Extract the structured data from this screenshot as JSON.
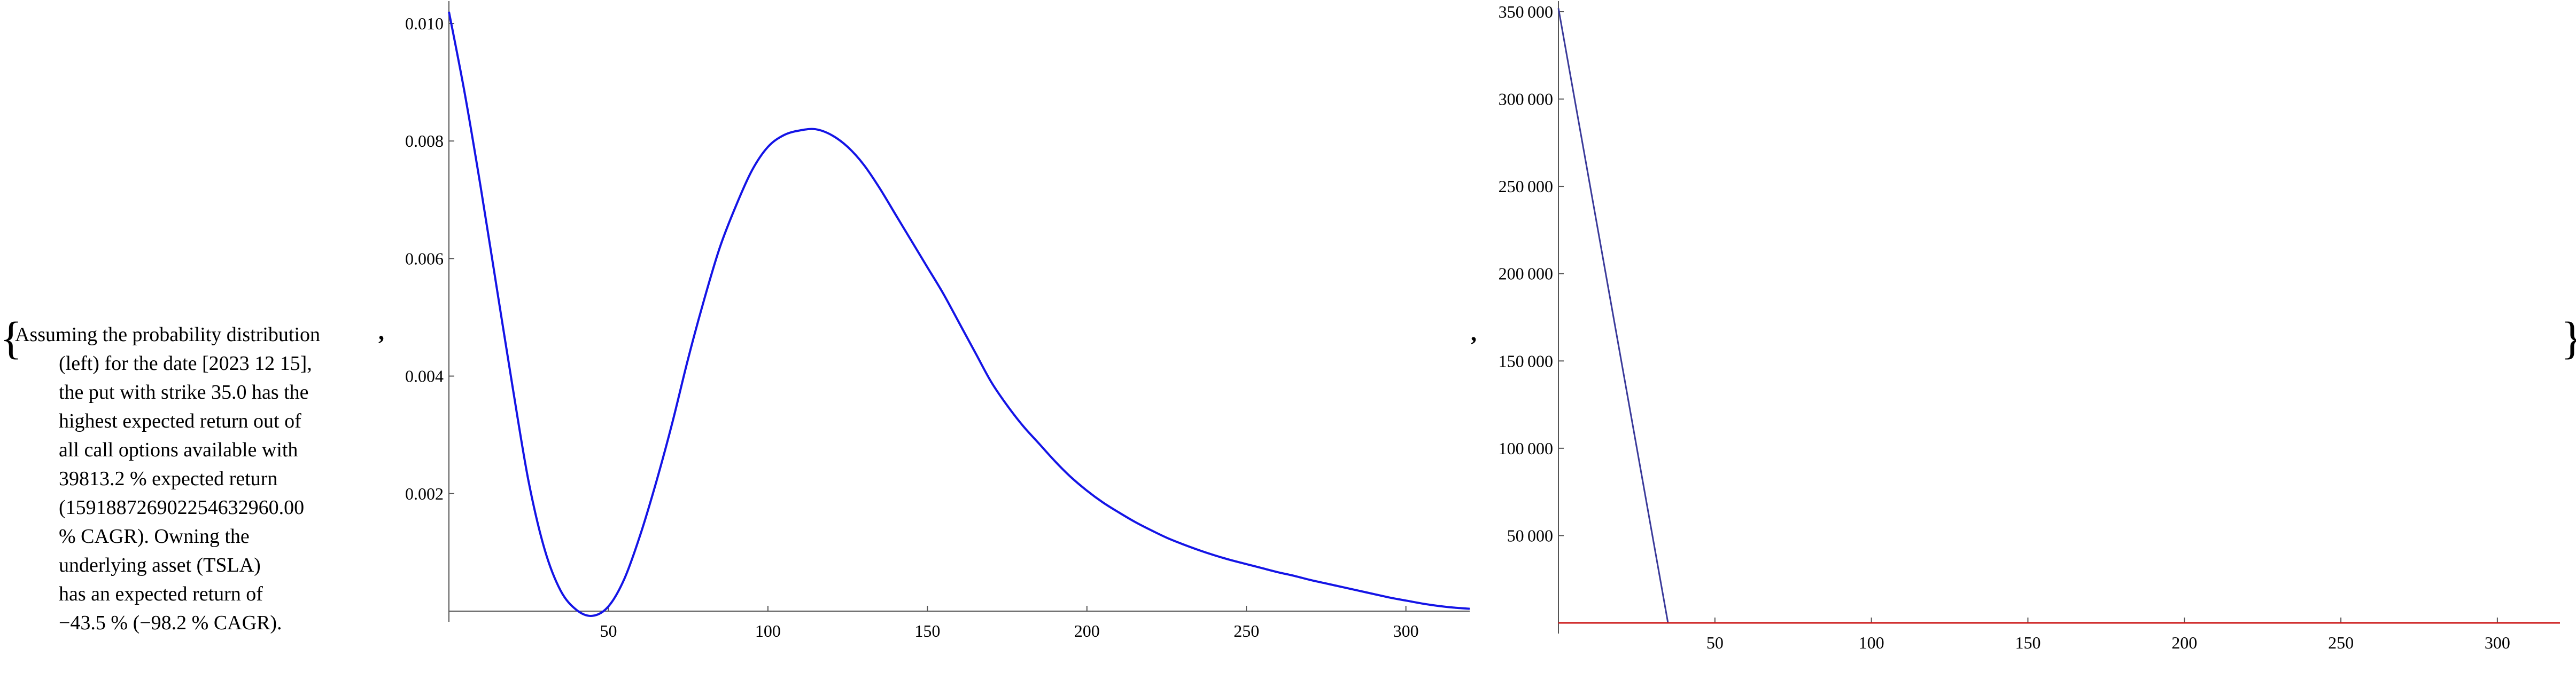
{
  "caption": {
    "lines": [
      "Assuming the probability distribution",
      "(left) for the date [2023 12 15],",
      "the put with strike 35.0 has the",
      "highest expected return out of",
      "all call options available with",
      "39813.2 % expected return",
      "(1591887269022546329​60.00",
      "% CAGR). Owning the",
      "underlying asset (TSLA)",
      "has an expected return of",
      "−43.5 % (−98.2 % CAGR)."
    ]
  },
  "chart_data": [
    {
      "type": "line",
      "title": "",
      "xlabel": "",
      "ylabel": "",
      "xlim": [
        0,
        320
      ],
      "ylim": [
        -0.0002,
        0.0102
      ],
      "x_ticks": [
        50,
        100,
        150,
        200,
        250,
        300
      ],
      "x_tick_labels": [
        "50",
        "100",
        "150",
        "200",
        "250",
        "300"
      ],
      "y_ticks": [
        0.002,
        0.004,
        0.006,
        0.008,
        0.01
      ],
      "y_tick_labels": [
        "0.002",
        "0.004",
        "0.006",
        "0.008",
        "0.010"
      ],
      "grid": false,
      "colors": {
        "series": "#1414e6"
      },
      "series": [
        {
          "name": "",
          "x": [
            0,
            5,
            10,
            15,
            20,
            25,
            30,
            35,
            40,
            45,
            50,
            55,
            60,
            65,
            70,
            75,
            80,
            85,
            90,
            95,
            100,
            105,
            110,
            115,
            120,
            125,
            130,
            135,
            140,
            145,
            150,
            155,
            160,
            165,
            170,
            175,
            180,
            185,
            190,
            195,
            200,
            205,
            210,
            215,
            220,
            225,
            230,
            235,
            240,
            245,
            250,
            255,
            260,
            265,
            270,
            275,
            280,
            285,
            290,
            295,
            300,
            305,
            310,
            315,
            320
          ],
          "y": [
            0.0102,
            0.0088,
            0.0072,
            0.0055,
            0.0038,
            0.0022,
            0.00105,
            0.00035,
            2e-05,
            -8e-05,
            8e-05,
            0.00055,
            0.0013,
            0.0022,
            0.0032,
            0.0043,
            0.0053,
            0.0062,
            0.0069,
            0.0075,
            0.0079,
            0.0081,
            0.00818,
            0.0082,
            0.0081,
            0.0079,
            0.0076,
            0.0072,
            0.00675,
            0.0063,
            0.00585,
            0.0054,
            0.0049,
            0.0044,
            0.0039,
            0.0035,
            0.00315,
            0.00285,
            0.00255,
            0.00228,
            0.00205,
            0.00185,
            0.00168,
            0.00152,
            0.00138,
            0.00125,
            0.00114,
            0.00104,
            0.00095,
            0.00087,
            0.0008,
            0.00073,
            0.00066,
            0.0006,
            0.00053,
            0.00047,
            0.00041,
            0.00035,
            0.00029,
            0.00023,
            0.00018,
            0.00013,
            9e-05,
            6e-05,
            4e-05
          ]
        }
      ]
    },
    {
      "type": "line",
      "title": "",
      "xlabel": "",
      "ylabel": "",
      "xlim": [
        0,
        320
      ],
      "ylim": [
        0,
        350000
      ],
      "x_ticks": [
        50,
        100,
        150,
        200,
        250,
        300
      ],
      "x_tick_labels": [
        "50",
        "100",
        "150",
        "200",
        "250",
        "300"
      ],
      "y_ticks": [
        50000,
        100000,
        150000,
        200000,
        250000,
        300000,
        350000
      ],
      "y_tick_labels": [
        "50 000",
        "100 000",
        "150 000",
        "200 000",
        "250 000",
        "300 000",
        "350 000"
      ],
      "grid": false,
      "colors": {
        "return": "#3a3a9a",
        "zero": "#cc1a1a"
      },
      "series": [
        {
          "name": "",
          "x": [
            0,
            35,
            320
          ],
          "y": [
            352000,
            0,
            0
          ]
        },
        {
          "name": "",
          "x": [
            0,
            320
          ],
          "y": [
            0,
            0
          ]
        }
      ]
    }
  ]
}
